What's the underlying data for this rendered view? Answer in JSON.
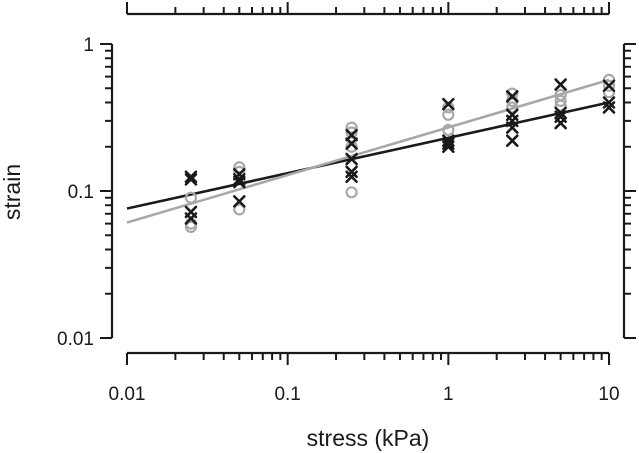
{
  "chart_data": {
    "type": "scatter",
    "title": "",
    "xlabel": "stress (kPa)",
    "ylabel": "strain",
    "xscale": "log",
    "yscale": "log",
    "xlim": [
      0.01,
      10
    ],
    "ylim": [
      0.01,
      1
    ],
    "x_tick_labels": [
      "0.01",
      "0.1",
      "1",
      "10"
    ],
    "y_tick_labels": [
      "1",
      "0.1",
      "0.01"
    ],
    "x_tick_values": [
      0.01,
      0.1,
      1,
      10
    ],
    "y_tick_values": [
      1,
      0.1,
      0.01
    ],
    "grid": false,
    "legend": "none",
    "series": [
      {
        "marker": "x",
        "color": "#1a1a1a",
        "points": [
          {
            "x": 0.025,
            "y": 0.125
          },
          {
            "x": 0.025,
            "y": 0.12
          },
          {
            "x": 0.025,
            "y": 0.072
          },
          {
            "x": 0.025,
            "y": 0.065
          },
          {
            "x": 0.05,
            "y": 0.13
          },
          {
            "x": 0.05,
            "y": 0.12
          },
          {
            "x": 0.05,
            "y": 0.115
          },
          {
            "x": 0.05,
            "y": 0.085
          },
          {
            "x": 0.25,
            "y": 0.24
          },
          {
            "x": 0.25,
            "y": 0.21
          },
          {
            "x": 0.25,
            "y": 0.165
          },
          {
            "x": 0.25,
            "y": 0.135
          },
          {
            "x": 0.25,
            "y": 0.125
          },
          {
            "x": 1.0,
            "y": 0.39
          },
          {
            "x": 1.0,
            "y": 0.22
          },
          {
            "x": 1.0,
            "y": 0.21
          },
          {
            "x": 1.0,
            "y": 0.2
          },
          {
            "x": 2.5,
            "y": 0.44
          },
          {
            "x": 2.5,
            "y": 0.33
          },
          {
            "x": 2.5,
            "y": 0.3
          },
          {
            "x": 2.5,
            "y": 0.27
          },
          {
            "x": 2.5,
            "y": 0.22
          },
          {
            "x": 5.0,
            "y": 0.53
          },
          {
            "x": 5.0,
            "y": 0.34
          },
          {
            "x": 5.0,
            "y": 0.32
          },
          {
            "x": 5.0,
            "y": 0.29
          },
          {
            "x": 10.0,
            "y": 0.52
          },
          {
            "x": 10.0,
            "y": 0.4
          },
          {
            "x": 10.0,
            "y": 0.37
          }
        ]
      },
      {
        "marker": "o",
        "color": "#a8a8a8",
        "points": [
          {
            "x": 0.025,
            "y": 0.09
          },
          {
            "x": 0.025,
            "y": 0.06
          },
          {
            "x": 0.025,
            "y": 0.057
          },
          {
            "x": 0.05,
            "y": 0.145
          },
          {
            "x": 0.05,
            "y": 0.135
          },
          {
            "x": 0.05,
            "y": 0.075
          },
          {
            "x": 0.25,
            "y": 0.27
          },
          {
            "x": 0.25,
            "y": 0.25
          },
          {
            "x": 0.25,
            "y": 0.2
          },
          {
            "x": 0.25,
            "y": 0.098
          },
          {
            "x": 1.0,
            "y": 0.37
          },
          {
            "x": 1.0,
            "y": 0.33
          },
          {
            "x": 1.0,
            "y": 0.26
          },
          {
            "x": 2.5,
            "y": 0.46
          },
          {
            "x": 2.5,
            "y": 0.41
          },
          {
            "x": 2.5,
            "y": 0.37
          },
          {
            "x": 5.0,
            "y": 0.45
          },
          {
            "x": 5.0,
            "y": 0.41
          },
          {
            "x": 5.0,
            "y": 0.38
          },
          {
            "x": 10.0,
            "y": 0.57
          },
          {
            "x": 10.0,
            "y": 0.52
          },
          {
            "x": 10.0,
            "y": 0.47
          }
        ]
      }
    ],
    "fit_lines": [
      {
        "color": "#1a1a1a",
        "x": [
          0.01,
          10
        ],
        "y": [
          0.076,
          0.4
        ]
      },
      {
        "color": "#a8a8a8",
        "x": [
          0.01,
          10
        ],
        "y": [
          0.061,
          0.57
        ]
      }
    ]
  }
}
